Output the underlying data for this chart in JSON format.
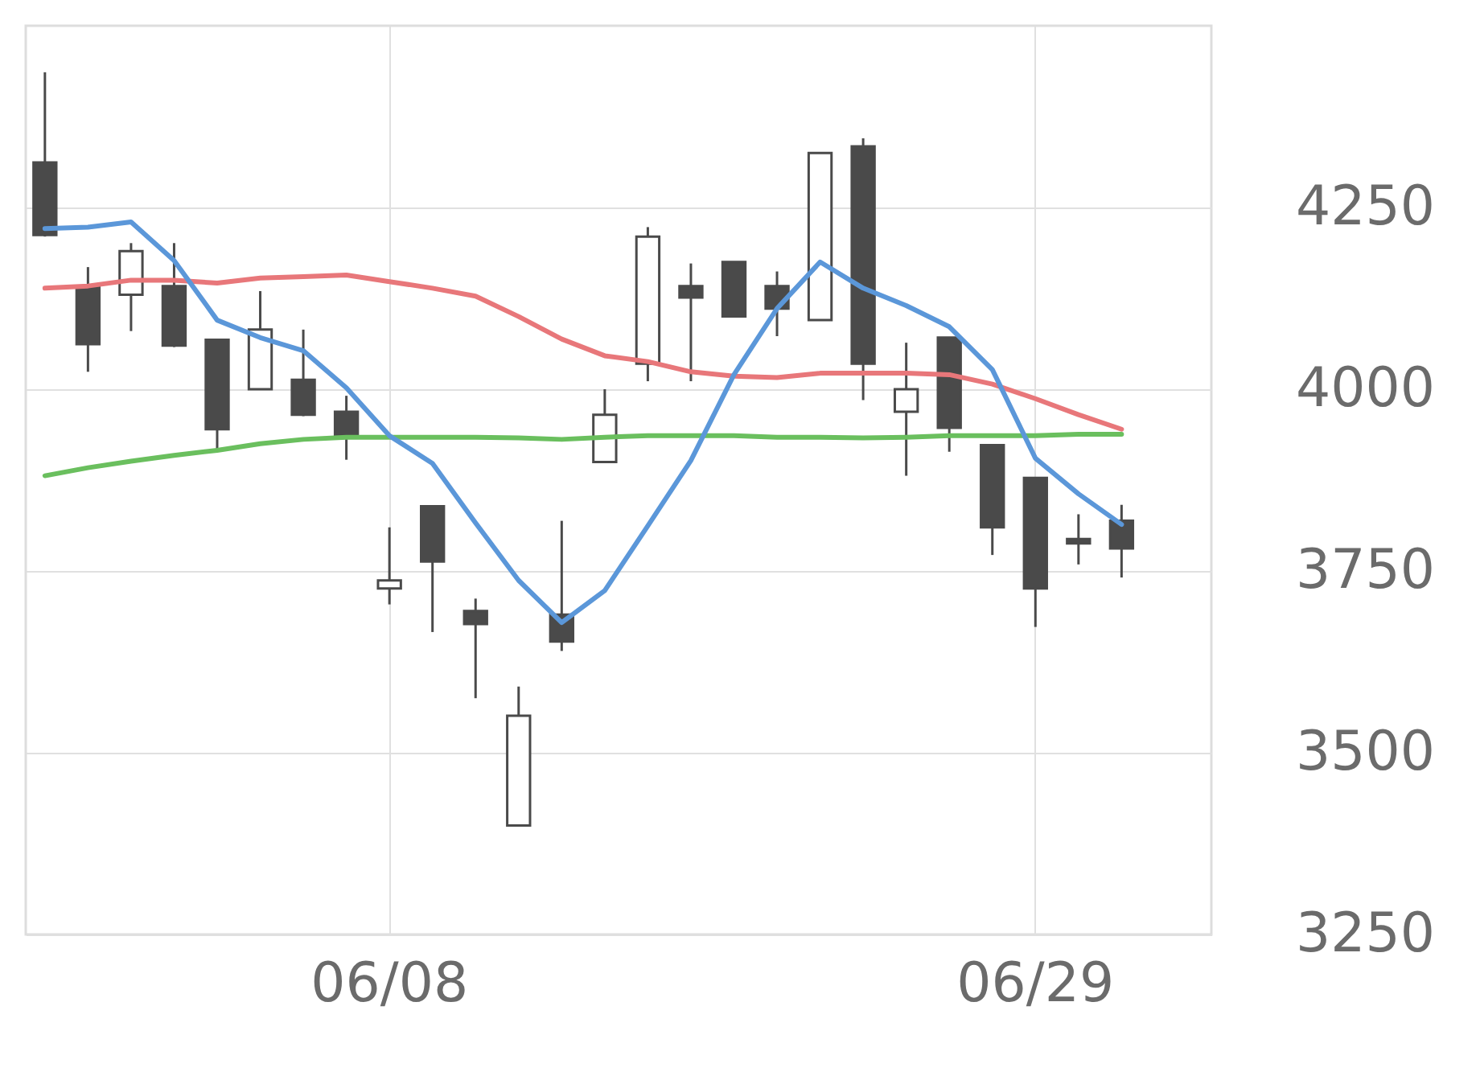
{
  "chart_data": {
    "type": "candlestick",
    "categories": [
      null,
      null,
      null,
      null,
      null,
      null,
      null,
      null,
      "06/08",
      null,
      null,
      null,
      null,
      null,
      null,
      null,
      null,
      null,
      null,
      null,
      null,
      null,
      null,
      "06/29",
      null,
      null
    ],
    "color": "#4a4a4a",
    "ohlc": [
      [
        4312,
        4436,
        4210,
        4212
      ],
      [
        4142,
        4168,
        4024,
        4062
      ],
      [
        4130,
        4201,
        4080,
        4190
      ],
      [
        4142,
        4201,
        4058,
        4060
      ],
      [
        4068,
        4068,
        3914,
        3945
      ],
      [
        4000,
        4135,
        4000,
        4082
      ],
      [
        4013,
        4082,
        3963,
        3965
      ],
      [
        3969,
        3991,
        3903,
        3936
      ],
      [
        3726,
        3810,
        3704,
        3737
      ],
      [
        3839,
        3839,
        3666,
        3763
      ],
      [
        3695,
        3712,
        3575,
        3677
      ],
      [
        3400,
        3591,
        3400,
        3551
      ],
      [
        3690,
        3819,
        3640,
        3653
      ],
      [
        3900,
        4000,
        3900,
        3965
      ],
      [
        4035,
        4223,
        4011,
        4210
      ],
      [
        4142,
        4173,
        4011,
        4126
      ],
      [
        4175,
        4175,
        4100,
        4100
      ],
      [
        4142,
        4162,
        4073,
        4111
      ],
      [
        4095,
        4325,
        4095,
        4325
      ],
      [
        4334,
        4345,
        3985,
        4035
      ],
      [
        3969,
        4064,
        3881,
        4000
      ],
      [
        4071,
        4071,
        3914,
        3947
      ],
      [
        3923,
        3923,
        3772,
        3810
      ],
      [
        3878,
        3878,
        3673,
        3726
      ],
      [
        3794,
        3828,
        3759,
        3788
      ],
      [
        3819,
        3841,
        3741,
        3781
      ]
    ],
    "series": [
      {
        "type": "line",
        "color": "#e8777a",
        "values": [
          4139,
          4142,
          4150,
          4150,
          4146,
          4153,
          4155,
          4157,
          4148,
          4139,
          4128,
          4100,
          4069,
          4046,
          4038,
          4024,
          4018,
          4016,
          4022,
          4022,
          4022,
          4020,
          4007,
          3987,
          3965,
          3945
        ]
      },
      {
        "type": "line",
        "color": "#6abf5e",
        "values": [
          3881,
          3892,
          3901,
          3909,
          3916,
          3925,
          3931,
          3934,
          3934,
          3934,
          3934,
          3933,
          3931,
          3934,
          3936,
          3936,
          3936,
          3934,
          3934,
          3933,
          3934,
          3936,
          3936,
          3936,
          3938,
          3938
        ]
      },
      {
        "type": "line",
        "color": "#5b97d9",
        "values": [
          4221,
          4223,
          4230,
          4177,
          4095,
          4071,
          4053,
          4002,
          3936,
          3898,
          3816,
          3737,
          3679,
          3723,
          3812,
          3902,
          4020,
          4111,
          4175,
          4139,
          4115,
          4086,
          4027,
          3905,
          3856,
          3814
        ]
      }
    ],
    "ylim": [
      3250,
      4500
    ],
    "yticks": [
      3250,
      3500,
      3750,
      4000,
      4250
    ],
    "grid": true
  }
}
